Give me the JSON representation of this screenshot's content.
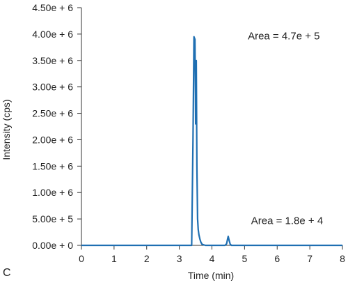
{
  "chart_data": {
    "type": "line",
    "panel_label": "C",
    "xlabel": "Time (min)",
    "ylabel": "Intensity (cps)",
    "xlim": [
      0,
      8
    ],
    "ylim": [
      0,
      4500000
    ],
    "x_ticks": [
      0,
      1,
      2,
      3,
      4,
      5,
      6,
      7,
      8
    ],
    "x_tick_labels": [
      "0",
      "1",
      "2",
      "3",
      "4",
      "5",
      "6",
      "7",
      "8"
    ],
    "y_ticks": [
      0,
      500000,
      1000000,
      1500000,
      2000000,
      2500000,
      3000000,
      3500000,
      4000000,
      4500000
    ],
    "y_tick_labels": [
      "0.00e + 0",
      "5.00e + 5",
      "1.00e + 6",
      "1.50e + 6",
      "2.00e + 6",
      "2.50e + 6",
      "3.00e + 6",
      "3.50e + 6",
      "4.00e + 6",
      "4.50e + 6"
    ],
    "grid": false,
    "series": [
      {
        "color": "#1f6fb2",
        "x": [
          0.0,
          3.3,
          3.38,
          3.42,
          3.45,
          3.48,
          3.5,
          3.52,
          3.54,
          3.56,
          3.58,
          3.6,
          3.63,
          3.66,
          3.7,
          3.8,
          4.4,
          4.45,
          4.48,
          4.5,
          4.53,
          4.56,
          4.6,
          5.0,
          8.0
        ],
        "y": [
          0,
          0,
          0,
          2000000,
          3950000,
          3900000,
          2300000,
          3500000,
          1500000,
          500000,
          300000,
          200000,
          120000,
          60000,
          20000,
          0,
          0,
          30000,
          120000,
          170000,
          90000,
          20000,
          0,
          0,
          0
        ]
      }
    ],
    "annotations": [
      {
        "text": "Area = 4.7e + 5",
        "x": 5.1,
        "y": 3900000
      },
      {
        "text": "Area = 1.8e + 4",
        "x": 5.2,
        "y": 400000
      }
    ]
  }
}
